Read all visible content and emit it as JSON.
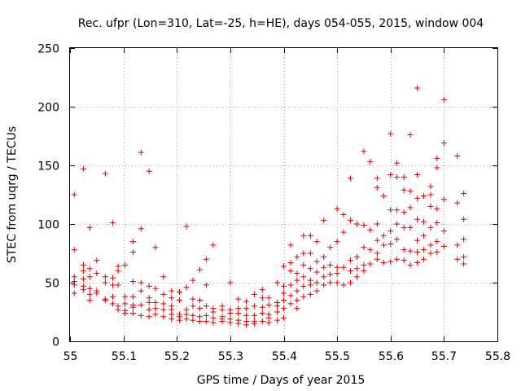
{
  "chart_data": {
    "type": "scatter",
    "title": "Rec. ufpr (Lon=310, Lat=-25, h=HE), days 054-055, 2015, window 004",
    "xlabel": "GPS time / Days of year 2015",
    "ylabel": "STEC from uqrg / TECUs",
    "xlim": [
      55,
      55.8
    ],
    "ylim": [
      0,
      250
    ],
    "xticks": [
      55,
      55.1,
      55.2,
      55.3,
      55.4,
      55.5,
      55.6,
      55.7,
      55.8
    ],
    "xtick_labels": [
      "55",
      "55.1",
      "55.2",
      "55.3",
      "55.4",
      "55.5",
      "55.6",
      "55.7",
      "55.8"
    ],
    "yticks": [
      0,
      50,
      100,
      150,
      200,
      250
    ],
    "ytick_labels": [
      "0",
      "50",
      "100",
      "150",
      "200",
      "250"
    ],
    "grid": true,
    "series": [
      {
        "name": "STEC",
        "color": "#e00000",
        "marker": "plus",
        "points": [
          [
            55.008,
            125
          ],
          [
            55.008,
            78
          ],
          [
            55.008,
            55
          ],
          [
            55.008,
            51
          ],
          [
            55.008,
            48
          ],
          [
            55.008,
            41
          ],
          [
            55.025,
            147
          ],
          [
            55.025,
            65
          ],
          [
            55.025,
            60
          ],
          [
            55.025,
            53
          ],
          [
            55.025,
            47
          ],
          [
            55.025,
            44
          ],
          [
            55.037,
            97
          ],
          [
            55.037,
            62
          ],
          [
            55.037,
            55
          ],
          [
            55.037,
            45
          ],
          [
            55.037,
            40
          ],
          [
            55.037,
            35
          ],
          [
            55.05,
            69
          ],
          [
            55.05,
            58
          ],
          [
            55.05,
            43
          ],
          [
            55.05,
            41
          ],
          [
            55.066,
            143
          ],
          [
            55.066,
            55
          ],
          [
            55.066,
            50
          ],
          [
            55.066,
            36
          ],
          [
            55.066,
            35
          ],
          [
            55.08,
            101
          ],
          [
            55.08,
            54
          ],
          [
            55.08,
            48
          ],
          [
            55.08,
            38
          ],
          [
            55.08,
            32
          ],
          [
            55.09,
            64
          ],
          [
            55.09,
            60
          ],
          [
            55.09,
            48
          ],
          [
            55.09,
            30
          ],
          [
            55.09,
            27
          ],
          [
            55.103,
            65
          ],
          [
            55.103,
            38
          ],
          [
            55.103,
            32
          ],
          [
            55.103,
            26
          ],
          [
            55.103,
            24
          ],
          [
            55.118,
            85
          ],
          [
            55.118,
            76
          ],
          [
            55.118,
            51
          ],
          [
            55.118,
            38
          ],
          [
            55.118,
            31
          ],
          [
            55.118,
            29
          ],
          [
            55.118,
            24
          ],
          [
            55.133,
            161
          ],
          [
            55.133,
            96
          ],
          [
            55.133,
            50
          ],
          [
            55.133,
            43
          ],
          [
            55.133,
            31
          ],
          [
            55.133,
            22
          ],
          [
            55.148,
            145
          ],
          [
            55.148,
            47
          ],
          [
            55.148,
            37
          ],
          [
            55.148,
            33
          ],
          [
            55.148,
            27
          ],
          [
            55.148,
            21
          ],
          [
            55.16,
            80
          ],
          [
            55.16,
            45
          ],
          [
            55.16,
            33
          ],
          [
            55.16,
            28
          ],
          [
            55.16,
            23
          ],
          [
            55.175,
            55
          ],
          [
            55.175,
            40
          ],
          [
            55.175,
            32
          ],
          [
            55.175,
            27
          ],
          [
            55.175,
            21
          ],
          [
            55.19,
            43
          ],
          [
            55.19,
            37
          ],
          [
            55.19,
            30
          ],
          [
            55.19,
            27
          ],
          [
            55.19,
            23
          ],
          [
            55.19,
            19
          ],
          [
            55.205,
            42
          ],
          [
            55.205,
            35
          ],
          [
            55.205,
            23
          ],
          [
            55.205,
            21
          ],
          [
            55.205,
            18
          ],
          [
            55.218,
            98
          ],
          [
            55.218,
            46
          ],
          [
            55.218,
            27
          ],
          [
            55.218,
            23
          ],
          [
            55.218,
            19
          ],
          [
            55.23,
            52
          ],
          [
            55.23,
            36
          ],
          [
            55.23,
            30
          ],
          [
            55.23,
            22
          ],
          [
            55.23,
            18
          ],
          [
            55.243,
            61
          ],
          [
            55.243,
            35
          ],
          [
            55.243,
            28
          ],
          [
            55.243,
            21
          ],
          [
            55.243,
            17
          ],
          [
            55.255,
            70
          ],
          [
            55.255,
            48
          ],
          [
            55.255,
            30
          ],
          [
            55.255,
            22
          ],
          [
            55.255,
            17
          ],
          [
            55.268,
            82
          ],
          [
            55.268,
            28
          ],
          [
            55.268,
            25
          ],
          [
            55.268,
            20
          ],
          [
            55.268,
            16
          ],
          [
            55.285,
            30
          ],
          [
            55.285,
            27
          ],
          [
            55.285,
            21
          ],
          [
            55.285,
            19
          ],
          [
            55.285,
            17
          ],
          [
            55.3,
            50
          ],
          [
            55.3,
            27
          ],
          [
            55.3,
            24
          ],
          [
            55.3,
            19
          ],
          [
            55.3,
            16
          ],
          [
            55.315,
            36
          ],
          [
            55.315,
            28
          ],
          [
            55.315,
            24
          ],
          [
            55.315,
            18
          ],
          [
            55.315,
            15
          ],
          [
            55.33,
            34
          ],
          [
            55.33,
            28
          ],
          [
            55.33,
            22
          ],
          [
            55.33,
            17
          ],
          [
            55.33,
            14
          ],
          [
            55.345,
            40
          ],
          [
            55.345,
            30
          ],
          [
            55.345,
            22
          ],
          [
            55.345,
            17
          ],
          [
            55.345,
            15
          ],
          [
            55.36,
            44
          ],
          [
            55.36,
            37
          ],
          [
            55.36,
            29
          ],
          [
            55.36,
            24
          ],
          [
            55.36,
            17
          ],
          [
            55.372,
            37
          ],
          [
            55.372,
            31
          ],
          [
            55.372,
            23
          ],
          [
            55.372,
            20
          ],
          [
            55.372,
            16
          ],
          [
            55.388,
            50
          ],
          [
            55.388,
            33
          ],
          [
            55.388,
            30
          ],
          [
            55.388,
            25
          ],
          [
            55.388,
            18
          ],
          [
            55.4,
            64
          ],
          [
            55.4,
            47
          ],
          [
            55.4,
            41
          ],
          [
            55.4,
            35
          ],
          [
            55.4,
            28
          ],
          [
            55.4,
            20
          ],
          [
            55.413,
            82
          ],
          [
            55.413,
            67
          ],
          [
            55.413,
            60
          ],
          [
            55.413,
            48
          ],
          [
            55.413,
            39
          ],
          [
            55.413,
            32
          ],
          [
            55.425,
            72
          ],
          [
            55.425,
            58
          ],
          [
            55.425,
            52
          ],
          [
            55.425,
            43
          ],
          [
            55.425,
            35
          ],
          [
            55.425,
            28
          ],
          [
            55.437,
            90
          ],
          [
            55.437,
            75
          ],
          [
            55.437,
            65
          ],
          [
            55.437,
            55
          ],
          [
            55.437,
            47
          ],
          [
            55.437,
            38
          ],
          [
            55.45,
            90
          ],
          [
            55.45,
            75
          ],
          [
            55.45,
            62
          ],
          [
            55.45,
            52
          ],
          [
            55.45,
            48
          ],
          [
            55.45,
            40
          ],
          [
            55.462,
            85
          ],
          [
            55.462,
            68
          ],
          [
            55.462,
            59
          ],
          [
            55.462,
            50
          ],
          [
            55.462,
            43
          ],
          [
            55.475,
            103
          ],
          [
            55.475,
            72
          ],
          [
            55.475,
            63
          ],
          [
            55.475,
            55
          ],
          [
            55.475,
            48
          ],
          [
            55.487,
            80
          ],
          [
            55.487,
            65
          ],
          [
            55.487,
            57
          ],
          [
            55.487,
            50
          ],
          [
            55.5,
            113
          ],
          [
            55.5,
            85
          ],
          [
            55.5,
            63
          ],
          [
            55.5,
            58
          ],
          [
            55.5,
            50
          ],
          [
            55.512,
            108
          ],
          [
            55.512,
            93
          ],
          [
            55.512,
            63
          ],
          [
            55.512,
            48
          ],
          [
            55.525,
            139
          ],
          [
            55.525,
            103
          ],
          [
            55.525,
            69
          ],
          [
            55.525,
            60
          ],
          [
            55.525,
            50
          ],
          [
            55.537,
            100
          ],
          [
            55.537,
            72
          ],
          [
            55.537,
            62
          ],
          [
            55.537,
            55
          ],
          [
            55.55,
            162
          ],
          [
            55.55,
            99
          ],
          [
            55.55,
            80
          ],
          [
            55.55,
            65
          ],
          [
            55.55,
            60
          ],
          [
            55.562,
            153
          ],
          [
            55.562,
            95
          ],
          [
            55.562,
            78
          ],
          [
            55.562,
            66
          ],
          [
            55.575,
            139
          ],
          [
            55.575,
            131
          ],
          [
            55.575,
            100
          ],
          [
            55.575,
            86
          ],
          [
            55.575,
            75
          ],
          [
            55.575,
            70
          ],
          [
            55.587,
            124
          ],
          [
            55.587,
            90
          ],
          [
            55.587,
            82
          ],
          [
            55.587,
            67
          ],
          [
            55.6,
            177
          ],
          [
            55.6,
            142
          ],
          [
            55.6,
            112
          ],
          [
            55.6,
            94
          ],
          [
            55.6,
            83
          ],
          [
            55.6,
            68
          ],
          [
            55.612,
            152
          ],
          [
            55.612,
            140
          ],
          [
            55.612,
            112
          ],
          [
            55.612,
            100
          ],
          [
            55.612,
            87
          ],
          [
            55.612,
            70
          ],
          [
            55.625,
            140
          ],
          [
            55.625,
            129
          ],
          [
            55.625,
            110
          ],
          [
            55.625,
            97
          ],
          [
            55.625,
            78
          ],
          [
            55.625,
            69
          ],
          [
            55.637,
            176
          ],
          [
            55.637,
            128
          ],
          [
            55.637,
            114
          ],
          [
            55.637,
            97
          ],
          [
            55.637,
            77
          ],
          [
            55.637,
            65
          ],
          [
            55.65,
            216
          ],
          [
            55.65,
            142
          ],
          [
            55.65,
            122
          ],
          [
            55.65,
            104
          ],
          [
            55.65,
            86
          ],
          [
            55.65,
            76
          ],
          [
            55.65,
            67
          ],
          [
            55.662,
            124
          ],
          [
            55.662,
            102
          ],
          [
            55.662,
            90
          ],
          [
            55.662,
            78
          ],
          [
            55.662,
            70
          ],
          [
            55.675,
            132
          ],
          [
            55.675,
            125
          ],
          [
            55.675,
            115
          ],
          [
            55.675,
            97
          ],
          [
            55.675,
            82
          ],
          [
            55.675,
            75
          ],
          [
            55.687,
            156
          ],
          [
            55.687,
            148
          ],
          [
            55.687,
            113
          ],
          [
            55.687,
            101
          ],
          [
            55.687,
            85
          ],
          [
            55.687,
            76
          ],
          [
            55.7,
            206
          ],
          [
            55.7,
            169
          ],
          [
            55.7,
            121
          ],
          [
            55.7,
            94
          ],
          [
            55.7,
            81
          ],
          [
            55.725,
            158
          ],
          [
            55.725,
            118
          ],
          [
            55.725,
            82
          ],
          [
            55.725,
            70
          ],
          [
            55.737,
            126
          ],
          [
            55.737,
            104
          ],
          [
            55.737,
            87
          ],
          [
            55.737,
            72
          ],
          [
            55.737,
            66
          ]
        ]
      }
    ]
  }
}
